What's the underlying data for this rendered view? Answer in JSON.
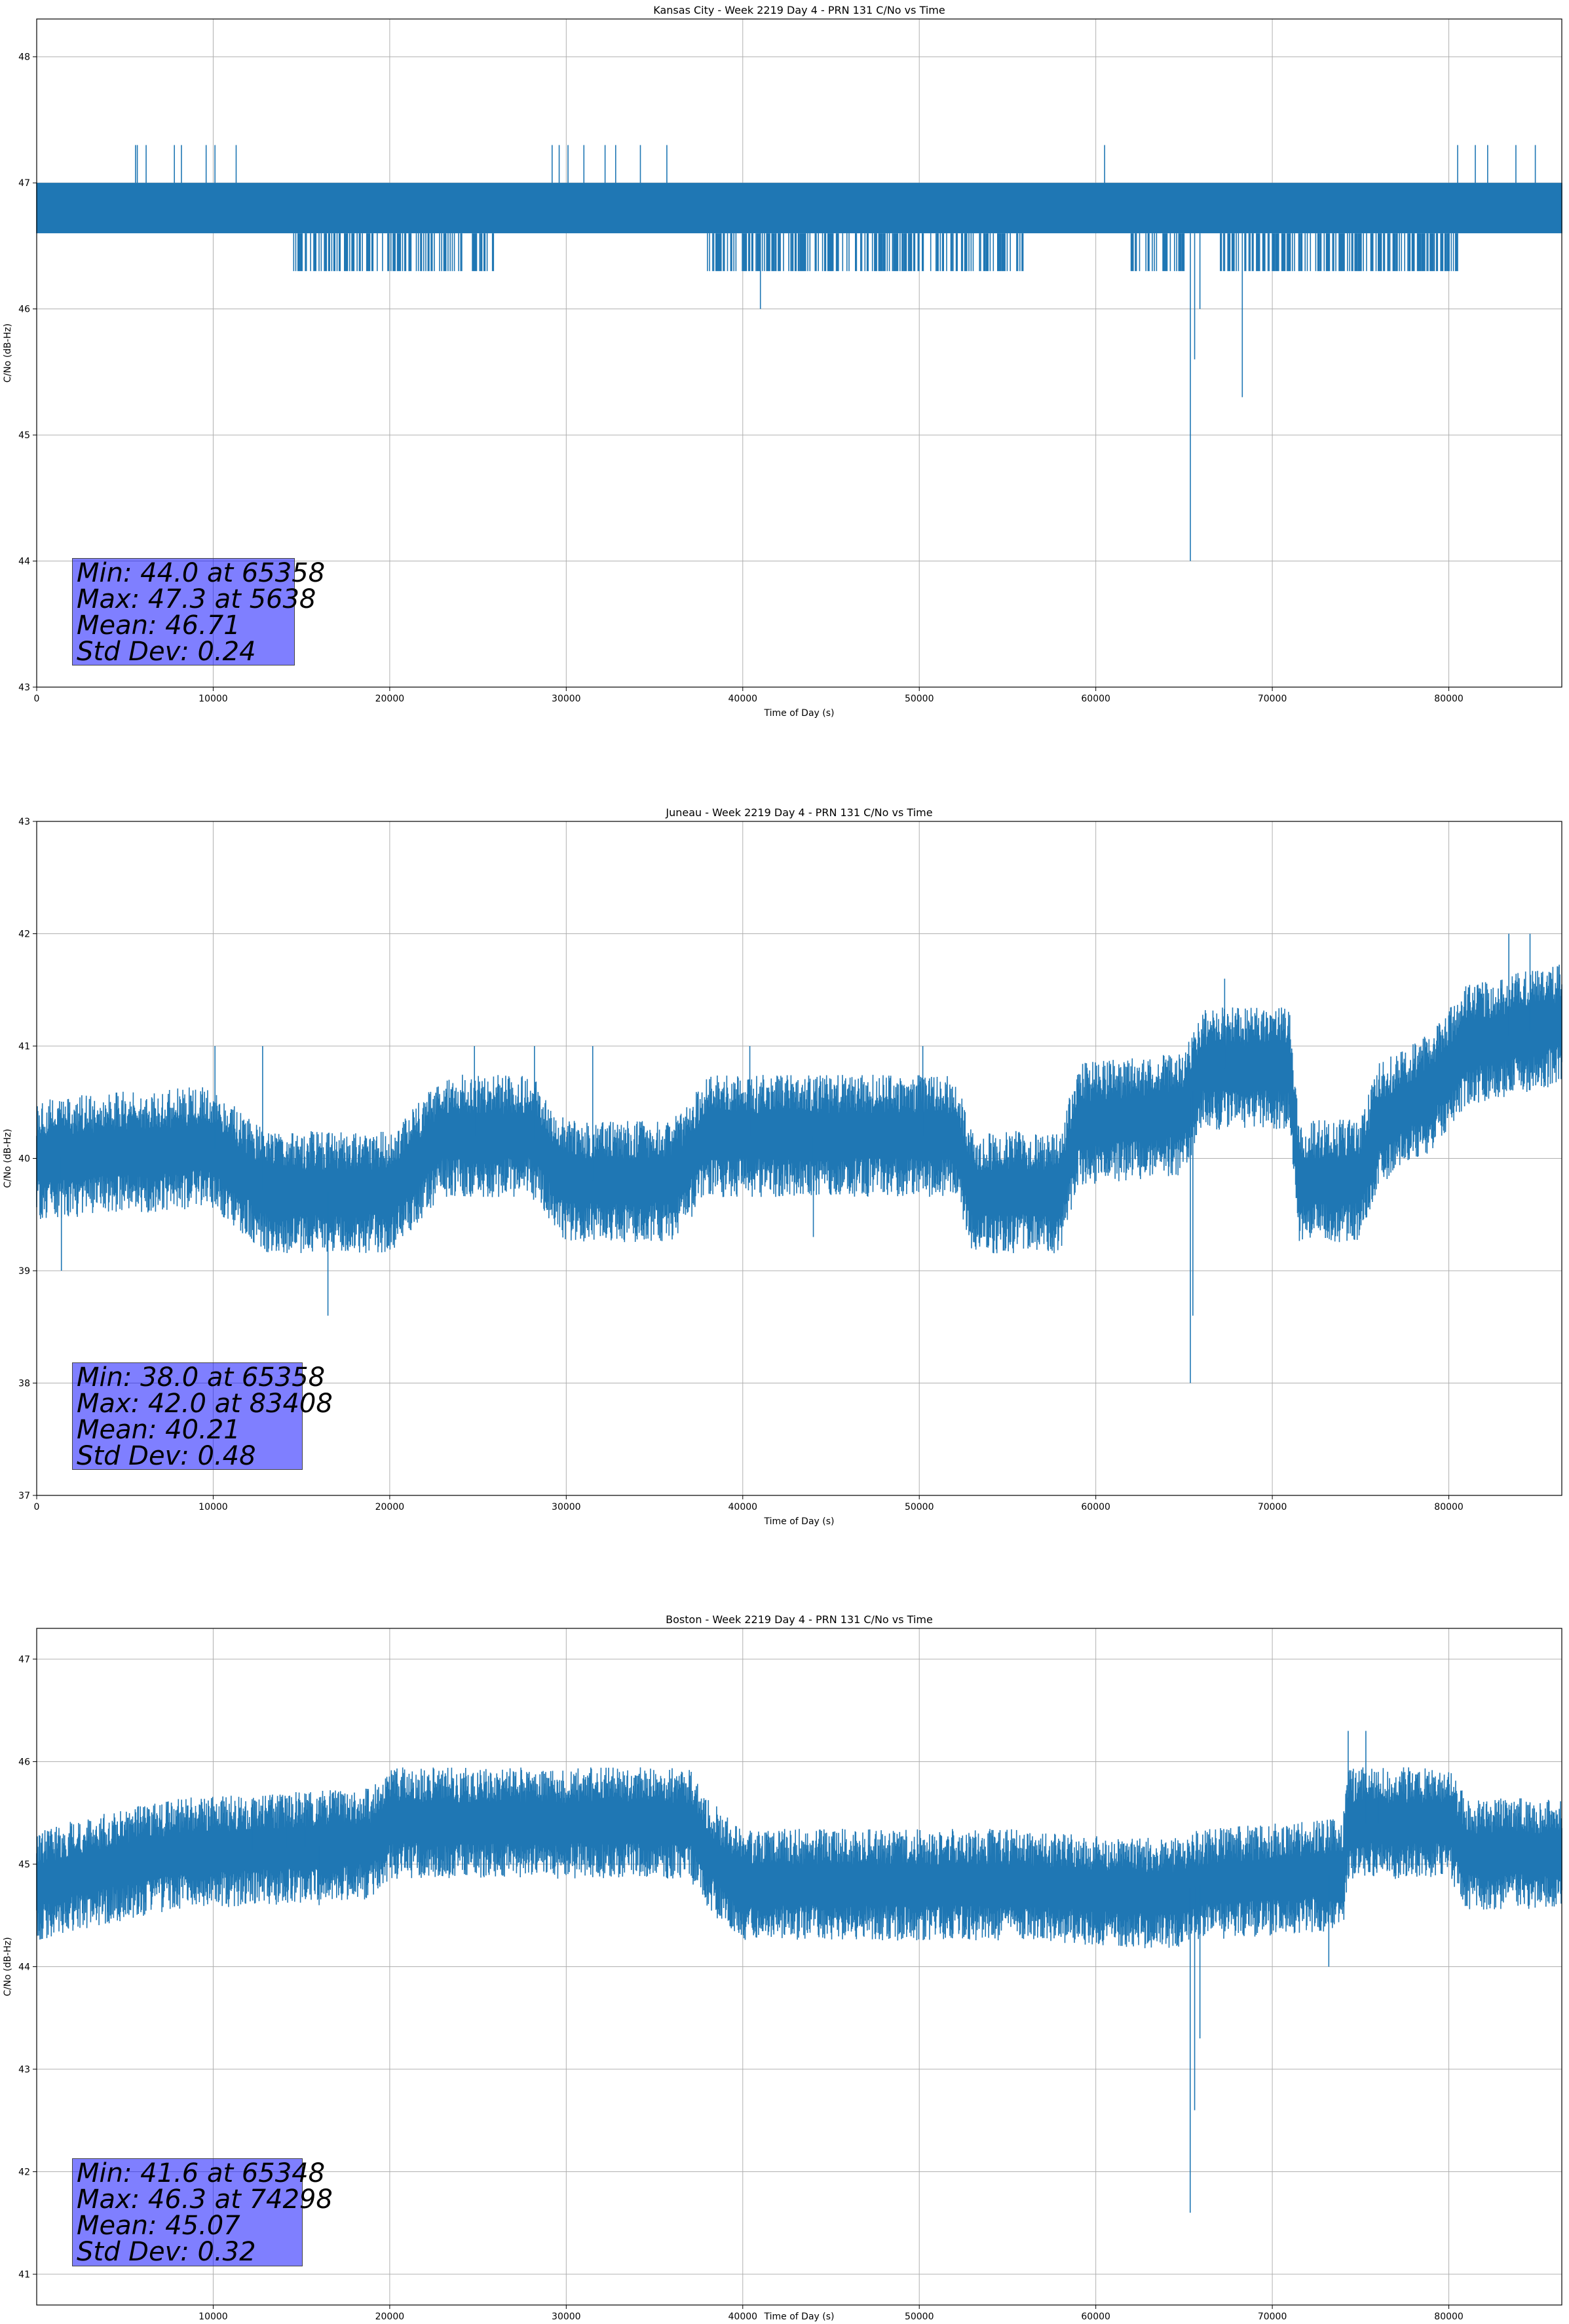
{
  "chart_data": [
    {
      "type": "line",
      "title": "Kansas City - Week 2219 Day 4 - PRN 131 C/No vs Time",
      "xlabel": "Time of Day (s)",
      "ylabel": "C/No (dB-Hz)",
      "xlim": [
        0,
        86400
      ],
      "ylim": [
        43,
        48.3
      ],
      "xticks": [
        0,
        10000,
        20000,
        30000,
        40000,
        50000,
        60000,
        70000,
        80000
      ],
      "yticks": [
        43,
        44,
        45,
        46,
        47,
        48
      ],
      "grid": true,
      "color": "#1f77b4",
      "band": {
        "low": 46.6,
        "high": 47.0
      },
      "upper_spikes": [
        5600,
        5700,
        6200,
        7800,
        8200,
        9600,
        10100,
        11300,
        29200,
        29600,
        30100,
        31000,
        32200,
        32800,
        34200,
        35700,
        60500,
        80500,
        81500,
        82200,
        83800,
        84900
      ],
      "lower_segments": [
        {
          "x0": 14500,
          "x1": 26000,
          "y": 46.3
        },
        {
          "x0": 26000,
          "x1": 31000,
          "y": 46.6
        },
        {
          "x0": 38000,
          "x1": 45000,
          "y": 46.3
        },
        {
          "x0": 45000,
          "x1": 56000,
          "y": 46.3
        },
        {
          "x0": 56000,
          "x1": 60000,
          "y": 46.6
        },
        {
          "x0": 62000,
          "x1": 65000,
          "y": 46.3
        },
        {
          "x0": 67000,
          "x1": 80500,
          "y": 46.3
        }
      ],
      "dips": [
        {
          "x": 41000,
          "y": 46.0
        },
        {
          "x": 65358,
          "y": 44.0
        },
        {
          "x": 65600,
          "y": 45.6
        },
        {
          "x": 65900,
          "y": 46.0
        },
        {
          "x": 68300,
          "y": 45.3
        }
      ],
      "stats": {
        "min": "Min: 44.0 at 65358",
        "max": "Max: 47.3 at 5638",
        "mean": "Mean: 46.71",
        "std": "Std Dev: 0.24"
      }
    },
    {
      "type": "line",
      "title": "Juneau - Week 2219 Day 4 - PRN 131 C/No vs Time",
      "xlabel": "Time of Day (s)",
      "ylabel": "C/No (dB-Hz)",
      "xlim": [
        0,
        86400
      ],
      "ylim": [
        37,
        43
      ],
      "xticks": [
        0,
        10000,
        20000,
        30000,
        40000,
        50000,
        60000,
        70000,
        80000
      ],
      "yticks": [
        37,
        38,
        39,
        40,
        41,
        42,
        43
      ],
      "grid": true,
      "color": "#1f77b4",
      "trend": [
        [
          0,
          40.0
        ],
        [
          10000,
          40.1
        ],
        [
          13000,
          39.7
        ],
        [
          20000,
          39.7
        ],
        [
          23000,
          40.2
        ],
        [
          28000,
          40.2
        ],
        [
          30000,
          39.8
        ],
        [
          36000,
          39.8
        ],
        [
          38000,
          40.2
        ],
        [
          52000,
          40.2
        ],
        [
          53000,
          39.7
        ],
        [
          58000,
          39.7
        ],
        [
          59000,
          40.3
        ],
        [
          65000,
          40.4
        ],
        [
          66000,
          40.8
        ],
        [
          71000,
          40.8
        ],
        [
          71500,
          39.8
        ],
        [
          75000,
          39.8
        ],
        [
          76000,
          40.3
        ],
        [
          79000,
          40.6
        ],
        [
          81000,
          41.0
        ],
        [
          86400,
          41.2
        ]
      ],
      "dips": [
        {
          "x": 1400,
          "y": 39.0
        },
        {
          "x": 16500,
          "y": 38.6
        },
        {
          "x": 44000,
          "y": 39.3
        },
        {
          "x": 65358,
          "y": 38.0
        },
        {
          "x": 65500,
          "y": 38.6
        }
      ],
      "peaks": [
        {
          "x": 10100,
          "y": 41.0
        },
        {
          "x": 12800,
          "y": 41.0
        },
        {
          "x": 24800,
          "y": 41.0
        },
        {
          "x": 28200,
          "y": 41.0
        },
        {
          "x": 31500,
          "y": 41.0
        },
        {
          "x": 40400,
          "y": 41.0
        },
        {
          "x": 50200,
          "y": 41.0
        },
        {
          "x": 67300,
          "y": 41.6
        },
        {
          "x": 83400,
          "y": 42.0
        },
        {
          "x": 84600,
          "y": 42.0
        }
      ],
      "stats": {
        "min": "Min: 38.0 at 65358",
        "max": "Max: 42.0 at 83408",
        "mean": "Mean: 40.21",
        "std": "Std Dev: 0.48"
      }
    },
    {
      "type": "line",
      "title": "Boston - Week 2219 Day 4 - PRN 131 C/No vs Time",
      "xlabel": "Time of Day (s)",
      "ylabel": "C/No (dB-Hz)",
      "xlim": [
        0,
        86400
      ],
      "ylim": [
        40.7,
        47.3
      ],
      "xticks": [
        10000,
        20000,
        30000,
        40000,
        50000,
        60000,
        70000,
        80000
      ],
      "yticks": [
        41,
        42,
        43,
        44,
        45,
        46,
        47
      ],
      "grid": true,
      "color": "#1f77b4",
      "trend": [
        [
          0,
          44.8
        ],
        [
          5000,
          45.0
        ],
        [
          8000,
          45.1
        ],
        [
          19000,
          45.2
        ],
        [
          20000,
          45.4
        ],
        [
          37000,
          45.4
        ],
        [
          38000,
          45.1
        ],
        [
          40000,
          44.8
        ],
        [
          55000,
          44.8
        ],
        [
          64000,
          44.7
        ],
        [
          66000,
          44.8
        ],
        [
          74000,
          44.9
        ],
        [
          74300,
          45.4
        ],
        [
          80000,
          45.4
        ],
        [
          81000,
          45.1
        ],
        [
          86400,
          45.1
        ]
      ],
      "dips": [
        {
          "x": 16000,
          "y": 44.6
        },
        {
          "x": 65348,
          "y": 41.6
        },
        {
          "x": 65600,
          "y": 42.6
        },
        {
          "x": 65900,
          "y": 43.3
        },
        {
          "x": 73200,
          "y": 44.0
        }
      ],
      "peaks": [
        {
          "x": 12200,
          "y": 45.6
        },
        {
          "x": 14200,
          "y": 45.6
        },
        {
          "x": 15200,
          "y": 45.6
        },
        {
          "x": 74298,
          "y": 46.3
        },
        {
          "x": 75300,
          "y": 46.3
        },
        {
          "x": 76000,
          "y": 45.9
        }
      ],
      "stats": {
        "min": "Min: 41.6 at 65348",
        "max": "Max: 46.3 at 74298",
        "mean": "Mean: 45.07",
        "std": "Std Dev: 0.32"
      }
    }
  ]
}
